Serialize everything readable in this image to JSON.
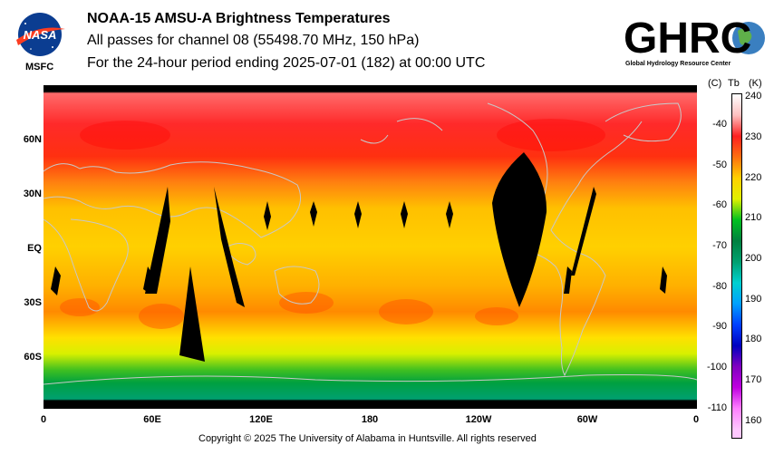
{
  "header": {
    "title": "NOAA-15 AMSU-A Brightness Temperatures",
    "subtitle_line1": "All passes for channel 08 (55498.70 MHz, 150 hPa)",
    "subtitle_line2": "For the 24-hour period ending 2025-07-01 (182) at 00:00 UTC"
  },
  "logos": {
    "nasa_text": "NASA",
    "nasa_caption": "MSFC",
    "ghrc_text": "GHRC",
    "ghrc_caption": "Global Hydrology Resource Center"
  },
  "map": {
    "lat_labels": [
      "60N",
      "30N",
      "EQ",
      "30S",
      "60S"
    ],
    "lon_labels": [
      "0",
      "60E",
      "120E",
      "180",
      "120W",
      "60W",
      "0"
    ],
    "no_data_color": "#000000",
    "coastline_color": "#c8c8c8"
  },
  "colorbar": {
    "header_c": "(C)",
    "header_tb": "Tb",
    "header_k": "(K)",
    "kelvin_range": [
      158,
      240
    ],
    "celsius_ticks": [
      "-40",
      "-50",
      "-60",
      "-70",
      "-80",
      "-90",
      "-100",
      "-110"
    ],
    "kelvin_ticks": [
      "240",
      "230",
      "220",
      "210",
      "200",
      "190",
      "180",
      "170",
      "160"
    ],
    "colors": {
      "240": "#ffffff",
      "235": "#ffc0c0",
      "230": "#ff2020",
      "225": "#ff7010",
      "220": "#ffd000",
      "215": "#e0f000",
      "210": "#00c020",
      "205": "#008040",
      "200": "#00a070",
      "195": "#00d0d0",
      "190": "#00a0ff",
      "185": "#0040ff",
      "180": "#0000c0",
      "175": "#8000c0",
      "170": "#c000e0",
      "165": "#ff80ff",
      "160": "#ffc8ff"
    }
  },
  "footer": {
    "copyright": "Copyright © 2025 The University of Alabama in Huntsville.  All rights reserved"
  }
}
